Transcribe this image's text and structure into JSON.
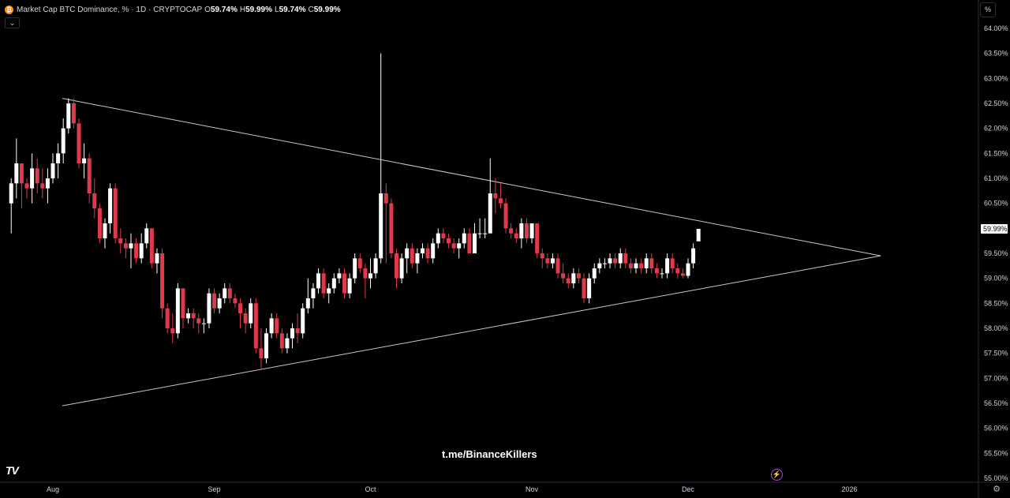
{
  "header": {
    "title": "Market Cap BTC Dominance, %",
    "interval": "· 1D ·",
    "exchange": "CRYPTOCAP",
    "ohlc": [
      {
        "key": "O",
        "value": "59.74%"
      },
      {
        "key": "H",
        "value": "59.99%"
      },
      {
        "key": "L",
        "value": "59.74%"
      },
      {
        "key": "C",
        "value": "59.99%"
      }
    ],
    "collapse_glyph": "⌄",
    "btc_glyph": "₿"
  },
  "scale_button_label": "%",
  "watermark": "t.me/BinanceKillers",
  "logo_text": "TV",
  "colors": {
    "up": "#ffffff",
    "down": "#e0394a",
    "triangle": "#c8c8c8",
    "background": "#000000",
    "text": "#d1d4dc",
    "price_label_bg": "#ffffff"
  },
  "icons": [
    "btc-icon",
    "chevron-down-icon",
    "tradingview-logo",
    "lightning-icon",
    "gear-icon"
  ],
  "chart_data": {
    "type": "candlestick",
    "ylim": [
      55.0,
      64.0
    ],
    "yticks": [
      "64.00%",
      "63.50%",
      "63.00%",
      "62.50%",
      "62.00%",
      "61.50%",
      "61.00%",
      "60.50%",
      "60.00%",
      "59.50%",
      "59.00%",
      "58.50%",
      "58.00%",
      "57.50%",
      "57.00%",
      "56.50%",
      "56.00%",
      "55.50%",
      "55.00%"
    ],
    "xticks": [
      "Aug",
      "Sep",
      "Oct",
      "Nov",
      "Dec",
      "2026"
    ],
    "x_tick_dates": [
      "2025-08-01",
      "2025-09-01",
      "2025-10-01",
      "2025-11-01",
      "2025-12-01",
      "2026-01-01"
    ],
    "last_price_label": "59.99%",
    "last_price": 59.99,
    "series_start_date": "2025-07-24",
    "candles_ohlc": [
      [
        60.5,
        61.0,
        59.9,
        60.9
      ],
      [
        60.9,
        61.8,
        60.6,
        61.3
      ],
      [
        61.3,
        61.3,
        60.4,
        60.9
      ],
      [
        60.9,
        61.0,
        60.6,
        60.8
      ],
      [
        60.8,
        61.5,
        60.5,
        61.2
      ],
      [
        61.2,
        61.4,
        60.7,
        60.9
      ],
      [
        60.9,
        61.2,
        60.6,
        60.8
      ],
      [
        60.8,
        61.2,
        60.5,
        61.0
      ],
      [
        61.0,
        61.5,
        60.9,
        61.3
      ],
      [
        61.3,
        61.7,
        61.0,
        61.5
      ],
      [
        61.5,
        62.2,
        61.3,
        62.0
      ],
      [
        62.0,
        62.6,
        61.9,
        62.5
      ],
      [
        62.5,
        62.6,
        62.0,
        62.1
      ],
      [
        62.1,
        62.2,
        61.2,
        61.3
      ],
      [
        61.3,
        61.7,
        61.0,
        61.4
      ],
      [
        61.4,
        61.5,
        60.5,
        60.7
      ],
      [
        60.7,
        61.0,
        60.2,
        60.4
      ],
      [
        60.4,
        60.5,
        59.7,
        59.8
      ],
      [
        59.8,
        60.2,
        59.6,
        60.1
      ],
      [
        60.1,
        60.9,
        59.9,
        60.8
      ],
      [
        60.8,
        60.9,
        59.7,
        59.8
      ],
      [
        59.8,
        60.0,
        59.5,
        59.7
      ],
      [
        59.7,
        59.8,
        59.4,
        59.6
      ],
      [
        59.6,
        59.9,
        59.2,
        59.7
      ],
      [
        59.7,
        59.8,
        59.3,
        59.4
      ],
      [
        59.4,
        59.9,
        59.3,
        59.7
      ],
      [
        59.7,
        60.1,
        59.6,
        60.0
      ],
      [
        60.0,
        60.0,
        59.2,
        59.3
      ],
      [
        59.3,
        59.6,
        59.1,
        59.5
      ],
      [
        59.5,
        59.6,
        58.2,
        58.4
      ],
      [
        58.4,
        58.5,
        57.9,
        58.0
      ],
      [
        58.0,
        58.3,
        57.7,
        57.9
      ],
      [
        57.9,
        58.9,
        57.8,
        58.8
      ],
      [
        58.8,
        58.8,
        58.0,
        58.2
      ],
      [
        58.2,
        58.4,
        58.1,
        58.3
      ],
      [
        58.3,
        58.4,
        58.0,
        58.2
      ],
      [
        58.2,
        58.3,
        57.9,
        58.1
      ],
      [
        58.1,
        58.2,
        57.9,
        58.1
      ],
      [
        58.1,
        58.8,
        58.0,
        58.7
      ],
      [
        58.7,
        58.8,
        58.3,
        58.4
      ],
      [
        58.4,
        58.7,
        58.3,
        58.6
      ],
      [
        58.6,
        58.9,
        58.5,
        58.8
      ],
      [
        58.8,
        58.9,
        58.5,
        58.6
      ],
      [
        58.6,
        58.7,
        58.4,
        58.5
      ],
      [
        58.5,
        58.6,
        58.0,
        58.3
      ],
      [
        58.3,
        58.4,
        57.9,
        58.1
      ],
      [
        58.1,
        58.6,
        58.0,
        58.5
      ],
      [
        58.5,
        58.6,
        57.5,
        57.6
      ],
      [
        57.6,
        58.0,
        57.2,
        57.4
      ],
      [
        57.4,
        58.0,
        57.3,
        57.9
      ],
      [
        57.9,
        58.3,
        57.8,
        58.2
      ],
      [
        58.2,
        58.3,
        57.8,
        57.9
      ],
      [
        57.9,
        58.0,
        57.5,
        57.6
      ],
      [
        57.6,
        57.9,
        57.5,
        57.8
      ],
      [
        57.8,
        58.1,
        57.6,
        58.0
      ],
      [
        58.0,
        58.3,
        57.7,
        57.9
      ],
      [
        57.9,
        58.5,
        57.8,
        58.4
      ],
      [
        58.4,
        59.0,
        58.3,
        58.6
      ],
      [
        58.6,
        58.9,
        58.4,
        58.8
      ],
      [
        58.8,
        59.2,
        58.7,
        59.1
      ],
      [
        59.1,
        59.2,
        58.6,
        58.7
      ],
      [
        58.7,
        58.9,
        58.5,
        58.8
      ],
      [
        58.8,
        59.1,
        58.7,
        59.0
      ],
      [
        59.0,
        59.2,
        58.9,
        59.1
      ],
      [
        59.1,
        59.2,
        58.6,
        58.7
      ],
      [
        58.7,
        59.1,
        58.6,
        59.0
      ],
      [
        59.0,
        59.5,
        58.9,
        59.4
      ],
      [
        59.4,
        59.5,
        59.1,
        59.2
      ],
      [
        59.2,
        59.3,
        58.6,
        59.0
      ],
      [
        59.0,
        59.4,
        58.8,
        59.1
      ],
      [
        59.1,
        59.5,
        59.0,
        59.4
      ],
      [
        59.4,
        63.5,
        59.3,
        60.7
      ],
      [
        60.7,
        60.9,
        59.3,
        60.5
      ],
      [
        60.5,
        60.6,
        59.4,
        59.5
      ],
      [
        59.5,
        59.6,
        58.8,
        59.0
      ],
      [
        59.0,
        59.5,
        58.9,
        59.4
      ],
      [
        59.4,
        59.7,
        59.1,
        59.6
      ],
      [
        59.6,
        59.7,
        59.2,
        59.3
      ],
      [
        59.3,
        59.6,
        59.1,
        59.5
      ],
      [
        59.5,
        59.7,
        59.4,
        59.6
      ],
      [
        59.6,
        59.7,
        59.3,
        59.4
      ],
      [
        59.4,
        59.8,
        59.3,
        59.7
      ],
      [
        59.7,
        60.0,
        59.6,
        59.9
      ],
      [
        59.9,
        60.0,
        59.7,
        59.8
      ],
      [
        59.8,
        59.9,
        59.6,
        59.7
      ],
      [
        59.7,
        59.8,
        59.5,
        59.6
      ],
      [
        59.6,
        59.8,
        59.4,
        59.7
      ],
      [
        59.7,
        60.0,
        59.6,
        59.9
      ],
      [
        59.9,
        60.0,
        59.5,
        59.5
      ],
      [
        59.5,
        60.1,
        59.5,
        59.9
      ],
      [
        59.9,
        60.2,
        59.8,
        59.9
      ],
      [
        59.9,
        60.2,
        59.8,
        59.9
      ],
      [
        59.9,
        61.4,
        59.9,
        60.7
      ],
      [
        60.7,
        61.0,
        60.3,
        60.6
      ],
      [
        60.6,
        60.9,
        60.4,
        60.5
      ],
      [
        60.5,
        60.6,
        59.9,
        60.0
      ],
      [
        60.0,
        60.1,
        59.8,
        59.9
      ],
      [
        59.9,
        60.0,
        59.7,
        59.8
      ],
      [
        59.8,
        60.2,
        59.6,
        60.1
      ],
      [
        60.1,
        60.2,
        59.7,
        59.8
      ],
      [
        59.8,
        60.1,
        59.7,
        60.1
      ],
      [
        60.1,
        60.1,
        59.4,
        59.5
      ],
      [
        59.5,
        59.6,
        59.2,
        59.4
      ],
      [
        59.4,
        59.5,
        59.2,
        59.3
      ],
      [
        59.3,
        59.5,
        59.2,
        59.4
      ],
      [
        59.4,
        59.5,
        59.0,
        59.1
      ],
      [
        59.1,
        59.3,
        58.9,
        59.0
      ],
      [
        59.0,
        59.1,
        58.8,
        58.9
      ],
      [
        58.9,
        59.2,
        58.8,
        59.1
      ],
      [
        59.1,
        59.2,
        58.9,
        59.0
      ],
      [
        59.0,
        59.1,
        58.5,
        58.6
      ],
      [
        58.6,
        59.1,
        58.5,
        59.0
      ],
      [
        59.0,
        59.3,
        58.9,
        59.2
      ],
      [
        59.2,
        59.4,
        59.1,
        59.3
      ],
      [
        59.3,
        59.4,
        59.2,
        59.3
      ],
      [
        59.3,
        59.5,
        59.2,
        59.4
      ],
      [
        59.4,
        59.5,
        59.2,
        59.3
      ],
      [
        59.3,
        59.6,
        59.2,
        59.5
      ],
      [
        59.5,
        59.6,
        59.2,
        59.3
      ],
      [
        59.3,
        59.4,
        59.1,
        59.2
      ],
      [
        59.2,
        59.4,
        59.1,
        59.3
      ],
      [
        59.3,
        59.4,
        59.1,
        59.2
      ],
      [
        59.2,
        59.5,
        59.1,
        59.4
      ],
      [
        59.4,
        59.5,
        59.1,
        59.2
      ],
      [
        59.2,
        59.3,
        59.0,
        59.1
      ],
      [
        59.1,
        59.2,
        59.0,
        59.1
      ],
      [
        59.1,
        59.5,
        59.0,
        59.4
      ],
      [
        59.4,
        59.5,
        59.1,
        59.2
      ],
      [
        59.2,
        59.3,
        59.0,
        59.1
      ],
      [
        59.1,
        59.2,
        59.0,
        59.05
      ],
      [
        59.05,
        59.4,
        59.0,
        59.3
      ],
      [
        59.3,
        59.7,
        59.2,
        59.6
      ],
      [
        59.74,
        59.99,
        59.74,
        59.99
      ]
    ],
    "trendlines": [
      {
        "name": "upper",
        "from": {
          "date": "2025-08-01",
          "value": 62.6
        },
        "to": {
          "date": "2026-01-07",
          "value": 59.45
        }
      },
      {
        "name": "lower",
        "from": {
          "date": "2025-08-01",
          "value": 56.45
        },
        "to": {
          "date": "2026-01-07",
          "value": 59.45
        }
      }
    ]
  }
}
